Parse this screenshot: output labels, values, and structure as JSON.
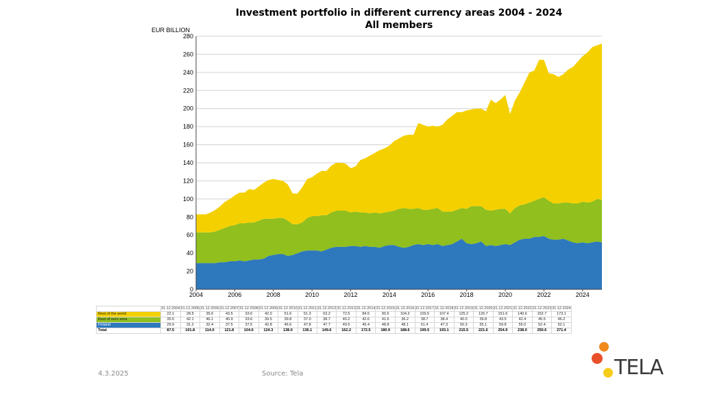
{
  "page": {
    "title_line1": "Investment portfolio in different currency areas 2004 - 2024",
    "title_line2": "All members",
    "date": "4.3.2025",
    "source": "Source: Tela",
    "logo_text": "TELA"
  },
  "colors": {
    "finland": "#2e78bd",
    "euro": "#90bf1e",
    "world": "#f5d000",
    "grid": "#d0d0d0",
    "logo_orange": "#f08a1c",
    "logo_red": "#e8502a",
    "logo_yellow": "#f5cc18"
  },
  "chart_data": {
    "type": "area",
    "stacked": true,
    "title": "Investment portfolio in different currency areas 2004 - 2024",
    "subtitle": "All members",
    "ylabel": "EUR BILLION",
    "ylim": [
      0,
      280
    ],
    "yticks": [
      0,
      20,
      40,
      60,
      80,
      100,
      120,
      140,
      160,
      180,
      200,
      220,
      240,
      260,
      280
    ],
    "xlim": [
      2004,
      2025
    ],
    "xticks": [
      2004,
      2006,
      2008,
      2010,
      2012,
      2014,
      2016,
      2018,
      2020,
      2022,
      2024
    ],
    "grid": true,
    "legend": "table-below",
    "x": [
      2004.0,
      2004.25,
      2004.5,
      2004.75,
      2005.0,
      2005.25,
      2005.5,
      2005.75,
      2006.0,
      2006.25,
      2006.5,
      2006.75,
      2007.0,
      2007.25,
      2007.5,
      2007.75,
      2008.0,
      2008.25,
      2008.5,
      2008.75,
      2009.0,
      2009.25,
      2009.5,
      2009.75,
      2010.0,
      2010.25,
      2010.5,
      2010.75,
      2011.0,
      2011.25,
      2011.5,
      2011.75,
      2012.0,
      2012.25,
      2012.5,
      2012.75,
      2013.0,
      2013.25,
      2013.5,
      2013.75,
      2014.0,
      2014.25,
      2014.5,
      2014.75,
      2015.0,
      2015.25,
      2015.5,
      2015.75,
      2016.0,
      2016.25,
      2016.5,
      2016.75,
      2017.0,
      2017.25,
      2017.5,
      2017.75,
      2018.0,
      2018.25,
      2018.5,
      2018.75,
      2019.0,
      2019.25,
      2019.5,
      2019.75,
      2020.0,
      2020.25,
      2020.5,
      2020.75,
      2021.0,
      2021.25,
      2021.5,
      2021.75,
      2022.0,
      2022.25,
      2022.5,
      2022.75,
      2023.0,
      2023.25,
      2023.5,
      2023.75,
      2024.0,
      2024.25,
      2024.5,
      2024.75,
      2025.0
    ],
    "series": [
      {
        "name": "Finland",
        "color_key": "finland",
        "values": [
          29,
          29,
          29,
          29,
          29,
          30,
          30,
          31,
          31,
          32,
          31,
          32,
          33,
          33,
          34,
          37,
          38,
          39,
          39,
          37,
          38,
          40,
          42,
          43,
          43,
          43,
          42,
          44,
          46,
          47,
          47,
          47,
          48,
          48,
          47,
          48,
          47,
          47,
          46,
          48,
          49,
          49,
          47,
          46,
          47,
          49,
          50,
          49,
          50,
          49,
          50,
          48,
          49,
          50,
          53,
          56,
          51,
          50,
          51,
          53,
          48,
          49,
          48,
          49,
          50,
          49,
          52,
          55,
          56,
          56,
          58,
          58,
          59,
          56,
          55,
          55,
          56,
          54,
          52,
          51,
          52,
          51,
          52,
          53,
          52
        ]
      },
      {
        "name": "Rest of euro area",
        "color_key": "euro",
        "values": [
          34,
          34,
          34,
          34,
          35,
          36,
          38,
          39,
          40,
          41,
          42,
          42,
          41,
          43,
          44,
          41,
          40,
          40,
          40,
          39,
          34,
          32,
          32,
          36,
          38,
          38,
          40,
          38,
          39,
          40,
          40,
          40,
          37,
          38,
          38,
          37,
          37,
          38,
          38,
          37,
          37,
          38,
          42,
          44,
          42,
          40,
          40,
          39,
          38,
          40,
          40,
          38,
          37,
          36,
          35,
          34,
          38,
          42,
          41,
          39,
          40,
          38,
          40,
          40,
          39,
          35,
          38,
          38,
          38,
          40,
          40,
          42,
          43,
          42,
          40,
          40,
          40,
          42,
          43,
          44,
          45,
          45,
          45,
          47,
          47
        ]
      },
      {
        "name": "Rest of the world",
        "color_key": "world",
        "values": [
          20,
          20,
          20,
          22,
          24,
          26,
          29,
          30,
          33,
          34,
          34,
          37,
          36,
          38,
          40,
          43,
          44,
          42,
          41,
          40,
          34,
          34,
          39,
          43,
          43,
          47,
          49,
          49,
          52,
          53,
          53,
          52,
          49,
          50,
          58,
          60,
          64,
          66,
          70,
          71,
          73,
          77,
          78,
          80,
          82,
          82,
          94,
          94,
          92,
          92,
          90,
          96,
          102,
          106,
          108,
          106,
          109,
          107,
          108,
          108,
          109,
          123,
          118,
          121,
          126,
          110,
          119,
          125,
          135,
          144,
          144,
          154,
          152,
          141,
          143,
          140,
          142,
          147,
          151,
          157,
          161,
          166,
          171,
          170,
          173
        ]
      }
    ],
    "table": {
      "dates": [
        "31.12.2004",
        "31.12.2005",
        "31.12.2006",
        "31.12.2007",
        "31.12.2008",
        "31.12.2009",
        "31.12.2010",
        "31.12.2011",
        "31.12.2012",
        "31.12.2013",
        "31.12.2014",
        "31.12.2015",
        "31.12.2016",
        "31.12.2017",
        "31.12.2018",
        "31.12.2019",
        "31.12.2020",
        "31.12.2021",
        "31.12.2022",
        "31.12.2023",
        "31.12.2024"
      ],
      "rows": [
        {
          "label": "Rest of the world",
          "swatch": "world",
          "values": [
            "22.1",
            "28.5",
            "35.6",
            "43.5",
            "33.6",
            "42.0",
            "51.6",
            "51.3",
            "63.2",
            "72.5",
            "84.5",
            "90.5",
            "104.3",
            "109.5",
            "107.4",
            "125.2",
            "126.7",
            "151.6",
            "140.6",
            "152.7",
            "173.1"
          ]
        },
        {
          "label": "Rest of euro area",
          "swatch": "euro",
          "values": [
            "35.5",
            "42.1",
            "46.1",
            "40.9",
            "33.6",
            "39.5",
            "39.8",
            "37.0",
            "38.7",
            "40.2",
            "42.6",
            "41.6",
            "36.2",
            "38.7",
            "38.4",
            "40.0",
            "39.8",
            "43.5",
            "42.4",
            "45.5",
            "46.2"
          ]
        },
        {
          "label": "Finland",
          "swatch": "finland",
          "values": [
            "29.9",
            "31.2",
            "32.4",
            "37.5",
            "37.5",
            "42.8",
            "46.6",
            "47.8",
            "47.7",
            "49.5",
            "45.4",
            "48.8",
            "48.1",
            "51.4",
            "47.3",
            "50.3",
            "55.1",
            "59.8",
            "55.0",
            "52.4",
            "52.1"
          ]
        },
        {
          "label": "Total",
          "swatch": "",
          "values": [
            "87.5",
            "101.8",
            "114.0",
            "121.8",
            "104.6",
            "124.3",
            "138.0",
            "136.1",
            "149.6",
            "162.2",
            "172.5",
            "180.9",
            "188.6",
            "199.5",
            "193.1",
            "215.5",
            "221.6",
            "254.9",
            "238.0",
            "250.6",
            "271.4"
          ]
        }
      ]
    }
  }
}
